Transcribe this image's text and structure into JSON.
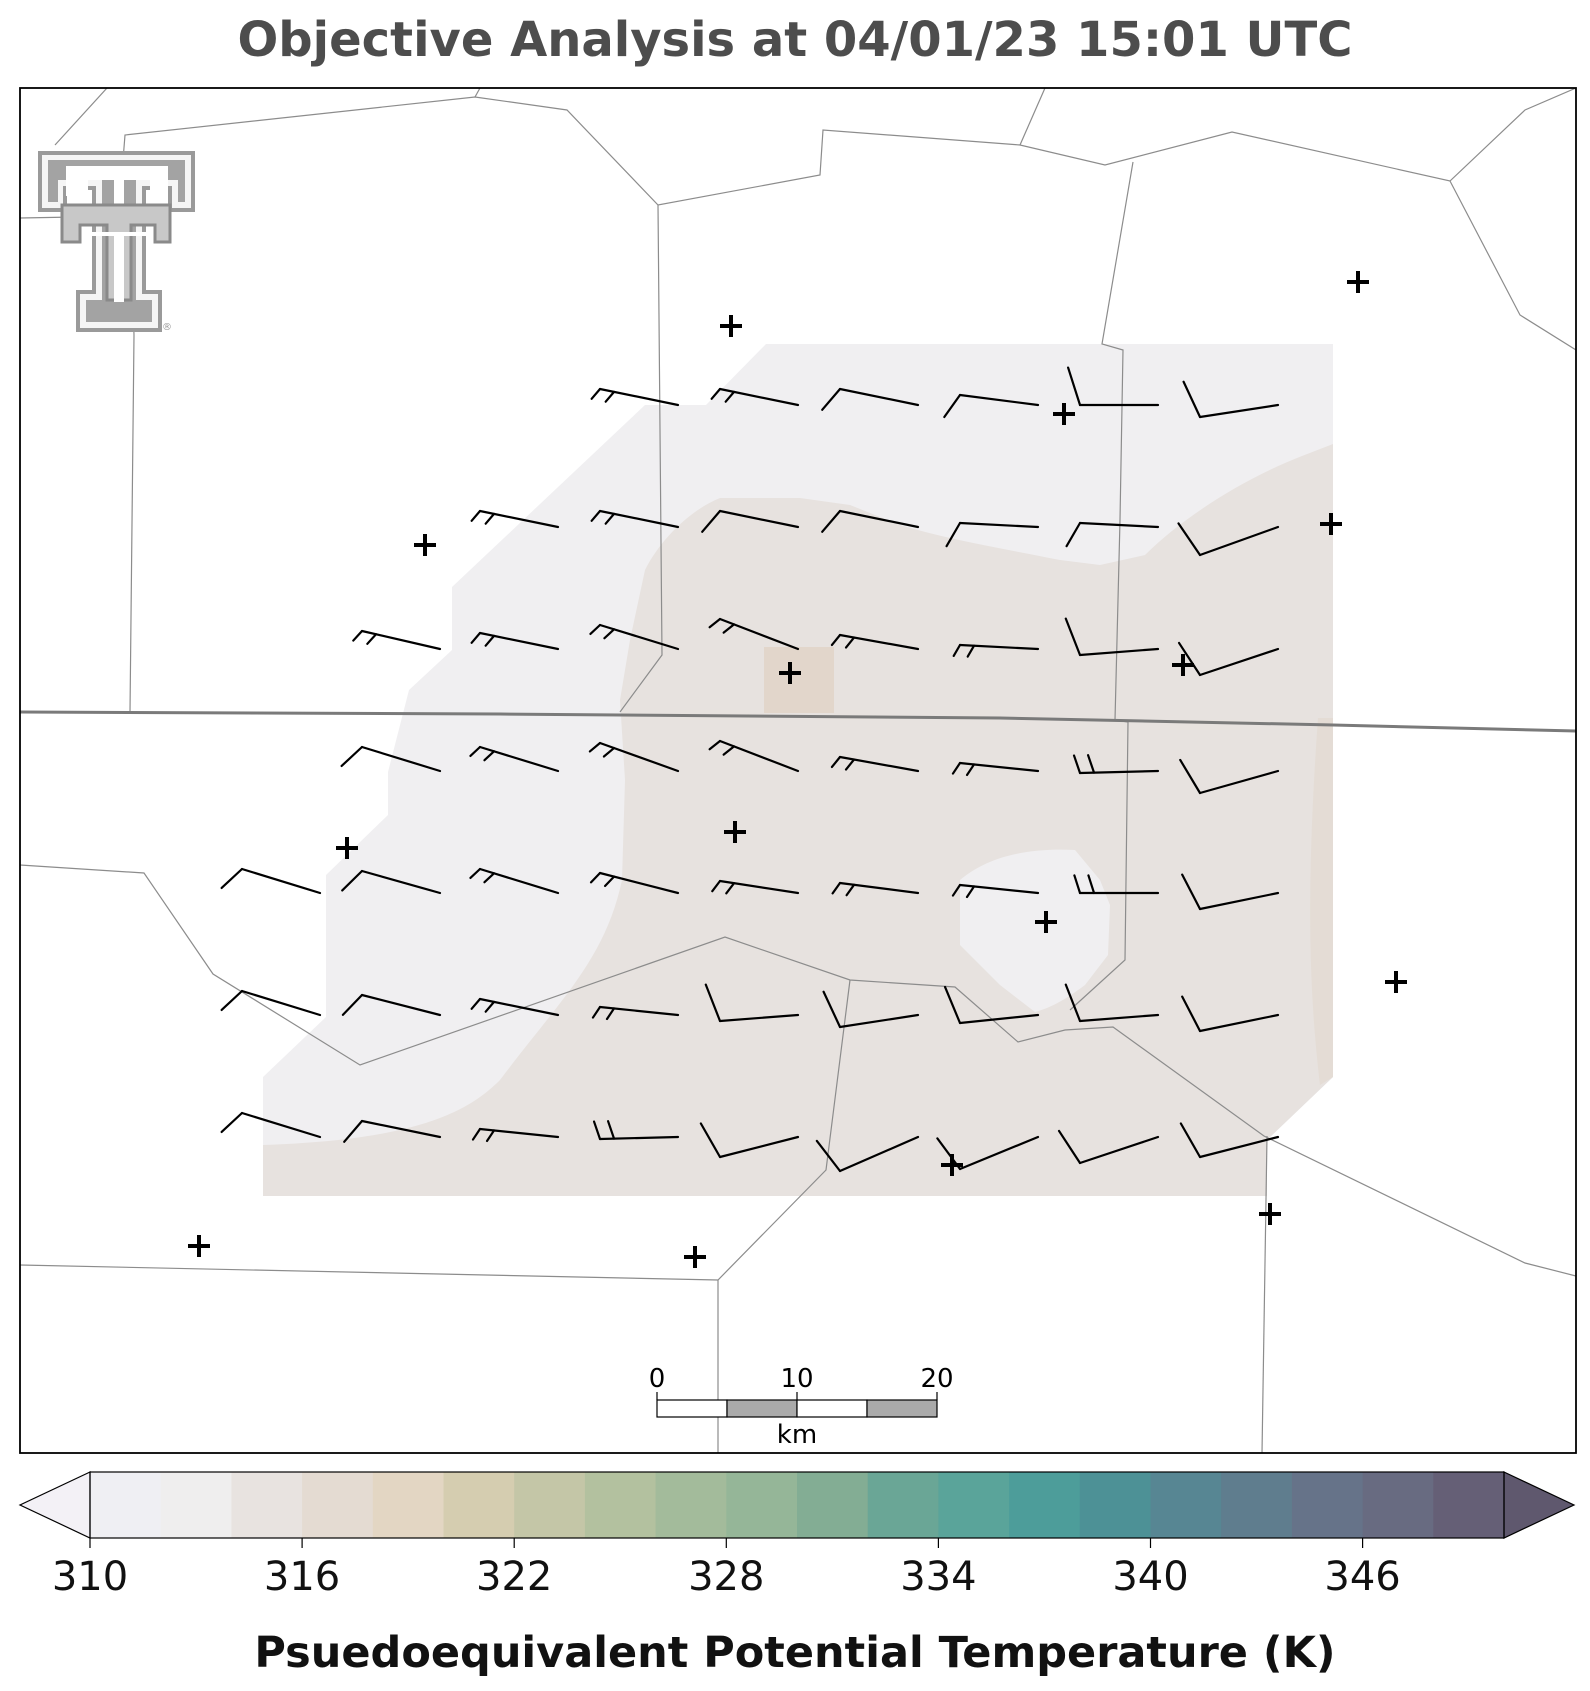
{
  "title": "Objective Analysis at 04/01/23 15:01 UTC",
  "logo": {
    "name": "texas-tech-double-t-logo",
    "mark": "®"
  },
  "map": {
    "colors": {
      "background": "#ffffff",
      "border": "#000000",
      "county_lines": "#8c8c8c",
      "state_line": "#7a7a7a",
      "shade_low": "#f0eff1",
      "shade_mid": "#e7e2df",
      "station_marker": "#000000",
      "barbs": "#000000"
    },
    "scale_bar": {
      "ticks": [
        "0",
        "10",
        "20"
      ],
      "unit": "km"
    }
  },
  "colorbar": {
    "label": "Psuedoequivalent Potential Temperature (K)",
    "extend": "both",
    "tick_labels": [
      "310",
      "316",
      "322",
      "328",
      "334",
      "340",
      "346"
    ],
    "colors": [
      "#efeff3",
      "#efeeee",
      "#e8e3e0",
      "#e4dbd2",
      "#e3d6c3",
      "#d5cdb0",
      "#c4c6a7",
      "#b3c19f",
      "#a3bb9b",
      "#95b698",
      "#83ad94",
      "#6aa696",
      "#5aa49a",
      "#4d9d9a",
      "#4d9196",
      "#578693",
      "#5f7d8e",
      "#667389",
      "#686b81",
      "#655f76"
    ],
    "under_color": "#f3f1f6",
    "over_color": "#5f586e"
  }
}
